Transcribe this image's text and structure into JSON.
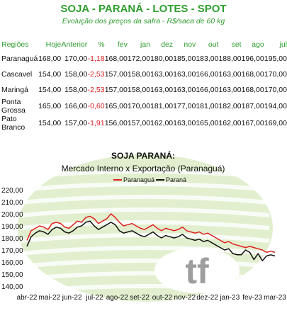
{
  "header": {
    "title": "SOJA - PARANÁ - LOTES - SPOT",
    "subtitle": "Evolução dos preços da safra - R$/saca de 60 kg"
  },
  "table": {
    "columns": [
      "Regiões",
      "Hoje",
      "Anterior",
      "%",
      "fev",
      "jan",
      "dez",
      "nov",
      "out",
      "set",
      "ago",
      "jul"
    ],
    "rows": [
      [
        "Paranaguá",
        "168,00",
        "170,00",
        "-1,18",
        "168,00",
        "172,00",
        "180,00",
        "185,00",
        "183,00",
        "188,00",
        "196,00",
        "195,00"
      ],
      [
        "Cascavel",
        "154,00",
        "158,00",
        "-2,53",
        "157,00",
        "158,00",
        "163,00",
        "163,00",
        "166,00",
        "163,00",
        "168,00",
        "170,00"
      ],
      [
        "Maringá",
        "154,00",
        "158,00",
        "-2,53",
        "157,00",
        "158,00",
        "163,00",
        "163,00",
        "166,00",
        "163,00",
        "168,00",
        "170,00"
      ],
      [
        "Ponta Grossa",
        "165,00",
        "166,00",
        "-0,60",
        "165,00",
        "170,00",
        "181,00",
        "177,00",
        "181,00",
        "182,00",
        "187,00",
        "194,00"
      ],
      [
        "Pato Branco",
        "154,00",
        "157,00",
        "-1,91",
        "156,00",
        "157,00",
        "162,00",
        "163,00",
        "165,00",
        "162,00",
        "167,00",
        "169,00"
      ]
    ]
  },
  "logo": {
    "text": "tf"
  },
  "chart_data": {
    "type": "line",
    "title": "SOJA PARANÁ:",
    "subtitle": "Mercado Interno x Exportação (Paranaguá)",
    "xlabel": "",
    "ylabel": "",
    "ylim": [
      140,
      220
    ],
    "yticks": [
      "140,00",
      "150,00",
      "160,00",
      "170,00",
      "180,00",
      "190,00",
      "200,00",
      "210,00",
      "220,00"
    ],
    "xticks": [
      "abr-22",
      "mai-22",
      "jun-22",
      "jul-22",
      "ago-22",
      "set-22",
      "out-22",
      "nov-22",
      "dez-22",
      "jan-23",
      "fev-23",
      "mar-23"
    ],
    "legend": "top",
    "grid": false,
    "series": [
      {
        "name": "Paranaguá",
        "color": "#e02020",
        "values": [
          178,
          186,
          188,
          190,
          189,
          187,
          192,
          193,
          192,
          189,
          188,
          191,
          194,
          193,
          197,
          198,
          196,
          192,
          194,
          196,
          200,
          197,
          193,
          190,
          191,
          192,
          190,
          188,
          187,
          189,
          191,
          188,
          186,
          188,
          187,
          186,
          187,
          189,
          186,
          185,
          184,
          185,
          183,
          184,
          182,
          180,
          178,
          176,
          177,
          175,
          174,
          173,
          172,
          173,
          172,
          171,
          170,
          168,
          169,
          168
        ]
      },
      {
        "name": "Paraná",
        "color": "#111111",
        "values": [
          173,
          181,
          184,
          186,
          185,
          183,
          187,
          189,
          188,
          185,
          184,
          186,
          189,
          190,
          193,
          194,
          190,
          187,
          189,
          191,
          193,
          191,
          186,
          184,
          185,
          186,
          184,
          182,
          181,
          183,
          185,
          182,
          180,
          182,
          181,
          180,
          181,
          183,
          180,
          179,
          178,
          179,
          177,
          178,
          176,
          174,
          172,
          170,
          171,
          167,
          166,
          166,
          170,
          168,
          162,
          167,
          161,
          165,
          166,
          165
        ]
      }
    ]
  }
}
